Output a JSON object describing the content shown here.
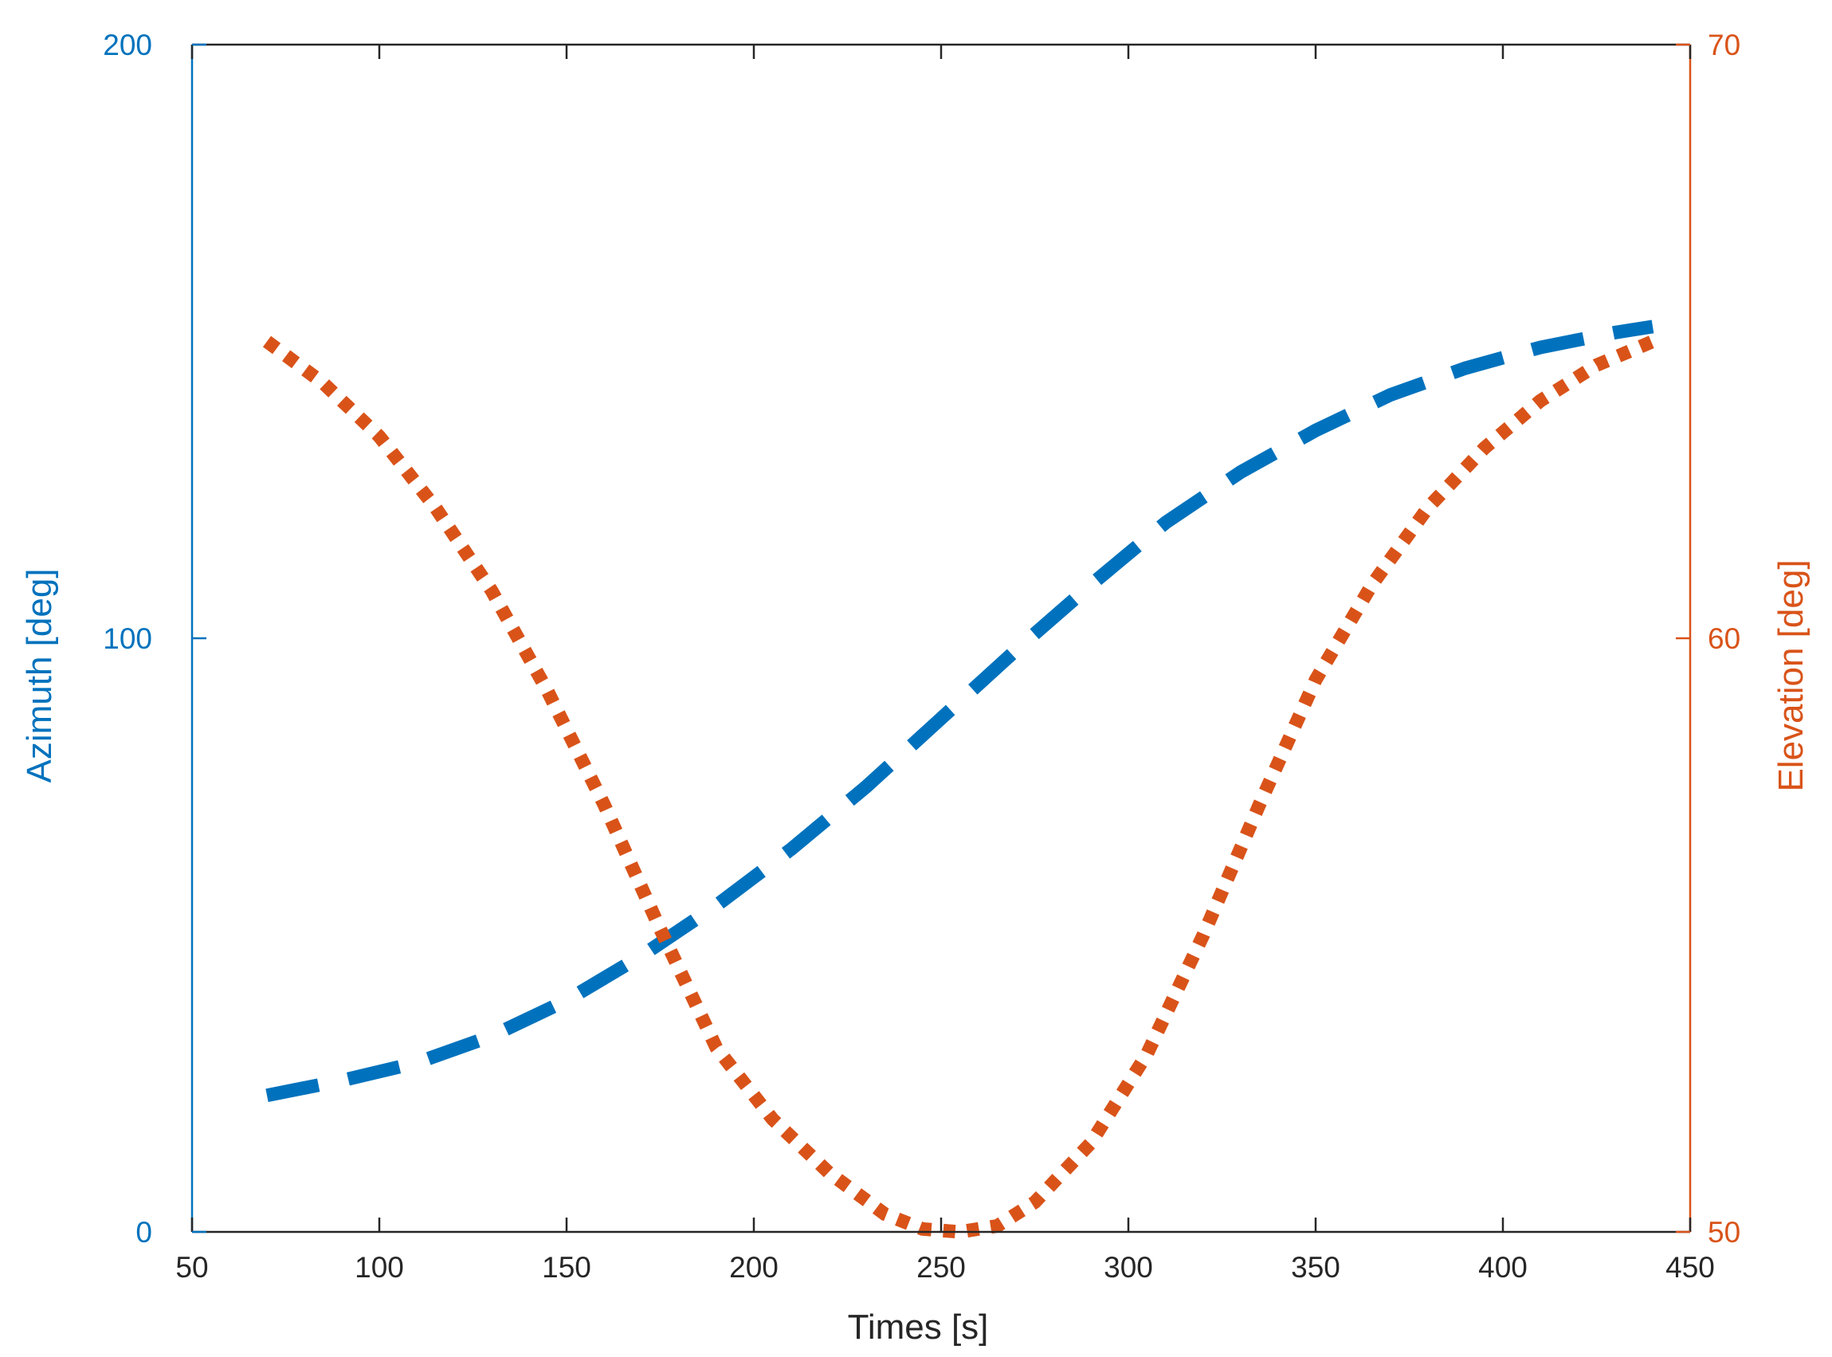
{
  "chart_data": {
    "type": "line",
    "xlabel": "Times [s]",
    "ylabel_left": "Azimuth [deg]",
    "ylabel_right": "Elevation [deg]",
    "xlim": [
      50,
      450
    ],
    "ylim_left": [
      0,
      200
    ],
    "ylim_right": [
      50,
      70
    ],
    "xticks": [
      50,
      100,
      150,
      200,
      250,
      300,
      350,
      400,
      450
    ],
    "yticks_left": [
      0,
      100,
      200
    ],
    "yticks_right": [
      50,
      60,
      70
    ],
    "grid": false,
    "colors": {
      "left_axis": "#0072bd",
      "right_axis": "#d95319",
      "box": "#262626",
      "text": "#262626"
    },
    "series": [
      {
        "axis": "left",
        "style": "dashed",
        "color": "#0072bd",
        "x": [
          70,
          90,
          110,
          130,
          150,
          170,
          190,
          210,
          230,
          250,
          270,
          290,
          310,
          330,
          350,
          370,
          390,
          410,
          430,
          440
        ],
        "y": [
          23,
          25.5,
          28.5,
          33,
          39,
          46.5,
          55,
          64.5,
          75,
          86.5,
          98,
          109,
          119.5,
          128,
          135,
          141,
          145.5,
          149,
          151.5,
          152.5
        ]
      },
      {
        "axis": "right",
        "style": "dotted",
        "color": "#d95319",
        "x": [
          70,
          85,
          100,
          115,
          130,
          145,
          160,
          175,
          190,
          205,
          220,
          235,
          245,
          255,
          265,
          275,
          290,
          305,
          320,
          335,
          350,
          365,
          380,
          395,
          410,
          425,
          440
        ],
        "y": [
          65,
          64.3,
          63.4,
          62.2,
          60.8,
          59.1,
          57.2,
          55.1,
          53.1,
          51.9,
          51.0,
          50.3,
          50.05,
          50.0,
          50.1,
          50.5,
          51.5,
          53.0,
          55.0,
          57.2,
          59.3,
          60.9,
          62.2,
          63.2,
          64.0,
          64.6,
          65.0
        ]
      }
    ]
  }
}
